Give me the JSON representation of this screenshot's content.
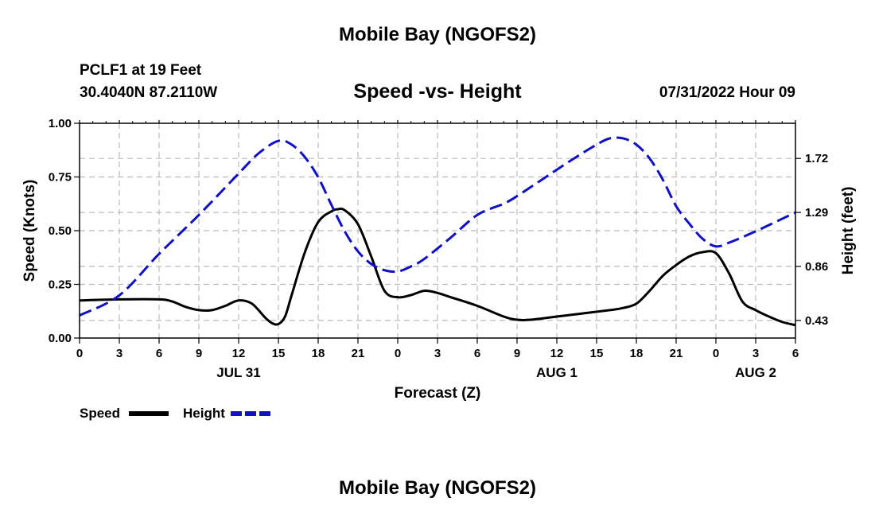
{
  "header": {
    "title": "Mobile Bay (NGOFS2)",
    "station": "PCLF1 at 19 Feet",
    "coords": "30.4040N  87.2110W",
    "subtitle": "Speed -vs- Height",
    "datetime": "07/31/2022 Hour 09"
  },
  "footer": {
    "title": "Mobile Bay (NGOFS2)"
  },
  "legend": {
    "speed_label": "Speed",
    "height_label": "Height"
  },
  "colors": {
    "speed": "#000000",
    "height": "#1010c8",
    "grid": "#bbbbbb"
  },
  "chart_data": {
    "type": "line",
    "title": "Speed -vs- Height",
    "xlabel": "Forecast (Z)",
    "ylabel": "Speed (Knots)",
    "y2label": "Height (feet)",
    "x_unit": "hours since 2022-07-31 00Z",
    "xlim": [
      0,
      54
    ],
    "ylim": [
      0,
      1
    ],
    "y2lim": [
      0.29,
      2.0
    ],
    "x_ticks": [
      0,
      3,
      6,
      9,
      12,
      15,
      18,
      21,
      24,
      27,
      30,
      33,
      36,
      39,
      42,
      45,
      48,
      51,
      54
    ],
    "x_tick_labels": [
      "0",
      "3",
      "6",
      "9",
      "12",
      "15",
      "18",
      "21",
      "0",
      "3",
      "6",
      "9",
      "12",
      "15",
      "18",
      "21",
      "0",
      "3",
      "6"
    ],
    "day_labels": [
      {
        "x": 12,
        "label": "JUL 31"
      },
      {
        "x": 36,
        "label": "AUG 1"
      },
      {
        "x": 51,
        "label": "AUG 2"
      }
    ],
    "y_ticks": [
      0,
      0.25,
      0.5,
      0.75,
      1.0
    ],
    "y_tick_labels": [
      "0.00",
      "0.25",
      "0.50",
      "0.75",
      "1.00"
    ],
    "y2_ticks": [
      0.43,
      0.86,
      1.29,
      1.72
    ],
    "y2_tick_labels": [
      "0.43",
      "0.86",
      "1.29",
      "1.72"
    ],
    "grid": true,
    "series": [
      {
        "name": "Speed",
        "axis": "left",
        "style": "solid",
        "x": [
          0,
          3,
          6,
          7,
          8,
          9,
          10,
          11,
          12,
          13,
          14,
          14.5,
          15,
          15.5,
          16,
          17,
          18,
          19,
          19.5,
          20,
          21,
          22,
          23,
          24,
          25,
          26,
          27,
          28,
          30,
          32,
          33,
          34,
          36,
          38,
          40,
          41,
          42,
          43,
          44,
          45,
          46,
          47,
          48,
          49,
          50,
          51,
          52,
          53,
          54
        ],
        "values": [
          0.175,
          0.18,
          0.18,
          0.17,
          0.145,
          0.13,
          0.13,
          0.15,
          0.175,
          0.16,
          0.095,
          0.07,
          0.065,
          0.1,
          0.2,
          0.4,
          0.54,
          0.59,
          0.6,
          0.595,
          0.53,
          0.38,
          0.22,
          0.19,
          0.2,
          0.22,
          0.21,
          0.19,
          0.15,
          0.1,
          0.085,
          0.085,
          0.1,
          0.115,
          0.13,
          0.14,
          0.16,
          0.22,
          0.29,
          0.34,
          0.38,
          0.4,
          0.395,
          0.3,
          0.17,
          0.13,
          0.1,
          0.075,
          0.06
        ]
      },
      {
        "name": "Height",
        "axis": "right",
        "style": "dashed",
        "x": [
          0,
          3,
          6,
          9,
          12,
          13.5,
          15,
          16,
          17,
          18,
          19,
          20,
          21,
          22,
          23,
          24,
          25,
          26,
          28,
          30,
          32,
          33,
          35,
          37,
          39,
          40,
          41,
          42,
          43,
          44,
          45,
          46,
          47,
          48,
          49,
          51,
          54
        ],
        "values": [
          0.47,
          0.63,
          0.96,
          1.27,
          1.6,
          1.76,
          1.86,
          1.83,
          1.73,
          1.57,
          1.35,
          1.14,
          0.98,
          0.88,
          0.83,
          0.82,
          0.86,
          0.92,
          1.09,
          1.27,
          1.36,
          1.42,
          1.56,
          1.7,
          1.83,
          1.88,
          1.88,
          1.83,
          1.72,
          1.55,
          1.34,
          1.2,
          1.08,
          1.02,
          1.05,
          1.14,
          1.29
        ]
      }
    ]
  }
}
